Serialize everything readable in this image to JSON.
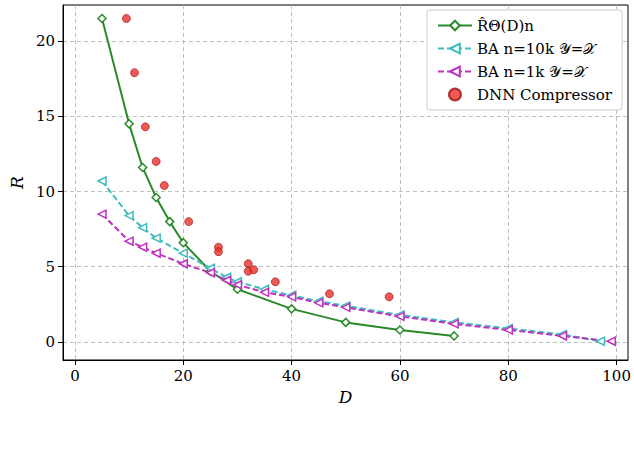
{
  "chart_data": {
    "type": "line",
    "x_label": "D",
    "y_label": "R",
    "xlim": [
      -2.2,
      102.1
    ],
    "ylim": [
      -1.2,
      22.4
    ],
    "xticks": [
      0,
      20,
      40,
      60,
      80,
      100
    ],
    "yticks": [
      0,
      5,
      10,
      15,
      20
    ],
    "grid": true,
    "legend": "upper right",
    "series": [
      {
        "name": "R̂Θ(D)n",
        "type": "line",
        "color": "#2a8a2a",
        "marker": "diamond",
        "line_style": "solid",
        "x": [
          5,
          10,
          12.5,
          15,
          17.5,
          20,
          25,
          30,
          40,
          50,
          60,
          70
        ],
        "values": [
          21.5,
          14.5,
          11.6,
          9.6,
          8.0,
          6.6,
          4.7,
          3.5,
          2.2,
          1.3,
          0.8,
          0.4
        ]
      },
      {
        "name": "BA n=10k 𝒴=𝒳",
        "type": "line",
        "color": "#3fbcbc",
        "marker": "triangle_left",
        "line_style": "dashed",
        "x": [
          5,
          10,
          12.5,
          15,
          20,
          25,
          28,
          30,
          35,
          40,
          45,
          50,
          60,
          70,
          80,
          90,
          97
        ],
        "values": [
          10.7,
          8.4,
          7.6,
          6.9,
          5.9,
          4.9,
          4.3,
          4.0,
          3.5,
          3.1,
          2.7,
          2.4,
          1.8,
          1.3,
          0.9,
          0.5,
          0.05
        ]
      },
      {
        "name": "BA n=1k 𝒴=𝒳",
        "type": "line",
        "color": "#c030c0",
        "marker": "triangle_left",
        "line_style": "dashed",
        "x": [
          5,
          10,
          12.5,
          15,
          20,
          25,
          28,
          30,
          35,
          40,
          45,
          50,
          60,
          70,
          80,
          90,
          99
        ],
        "values": [
          8.5,
          6.7,
          6.3,
          5.9,
          5.2,
          4.6,
          4.1,
          3.8,
          3.3,
          3.0,
          2.6,
          2.3,
          1.7,
          1.2,
          0.8,
          0.4,
          0.05
        ]
      },
      {
        "name": "DNN Compressor",
        "type": "scatter",
        "color": "#e8302a",
        "marker": "circle",
        "x": [
          9.5,
          11,
          13,
          15,
          16.5,
          21,
          26.5,
          26.5,
          32,
          32,
          33,
          37,
          47,
          58
        ],
        "values": [
          21.5,
          17.9,
          14.3,
          12.0,
          10.4,
          8.0,
          6.3,
          6.0,
          5.2,
          4.7,
          4.8,
          4.0,
          3.2,
          3.0
        ]
      }
    ]
  }
}
